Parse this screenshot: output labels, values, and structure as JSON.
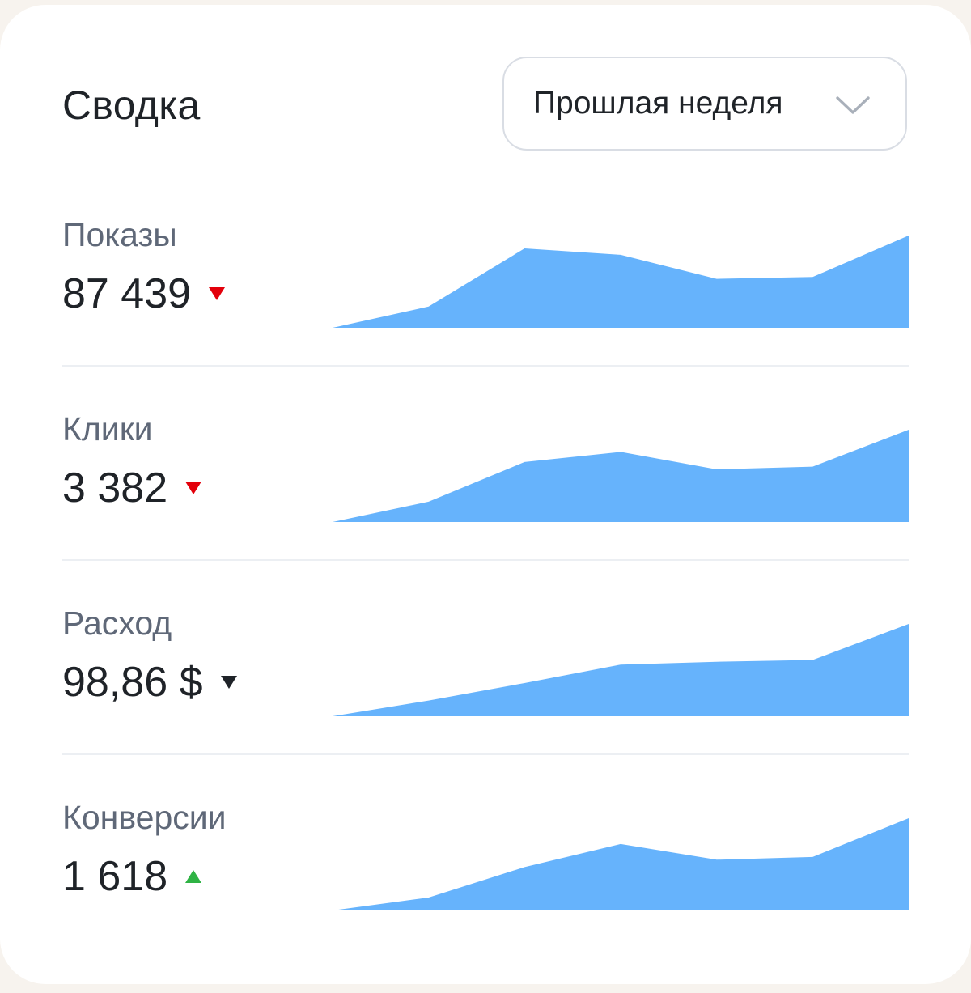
{
  "header": {
    "title": "Сводка",
    "period": {
      "selected": "Прошлая неделя",
      "icon": "chevron-down-icon"
    }
  },
  "colors": {
    "sparkline_fill": "#66b3fc",
    "trend_down_bad": "#e3000b",
    "trend_down_neutral": "#1f2328",
    "trend_up_good": "#2fb344"
  },
  "metrics": [
    {
      "label": "Показы",
      "value": "87 439",
      "trend": "down",
      "trend_color": "#e3000b",
      "series": [
        0.0,
        0.23,
        0.86,
        0.79,
        0.53,
        0.55,
        1.0
      ]
    },
    {
      "label": "Клики",
      "value": "3 382",
      "trend": "down",
      "trend_color": "#e3000b",
      "series": [
        0.0,
        0.22,
        0.65,
        0.76,
        0.57,
        0.6,
        1.0
      ]
    },
    {
      "label": "Расход",
      "value": "98,86 $",
      "trend": "down",
      "trend_color": "#1f2328",
      "series": [
        0.0,
        0.17,
        0.36,
        0.56,
        0.59,
        0.61,
        1.0
      ]
    },
    {
      "label": "Конверсии",
      "value": "1 618",
      "trend": "up",
      "trend_color": "#2fb344",
      "series": [
        0.0,
        0.14,
        0.47,
        0.72,
        0.55,
        0.58,
        1.0
      ]
    }
  ]
}
